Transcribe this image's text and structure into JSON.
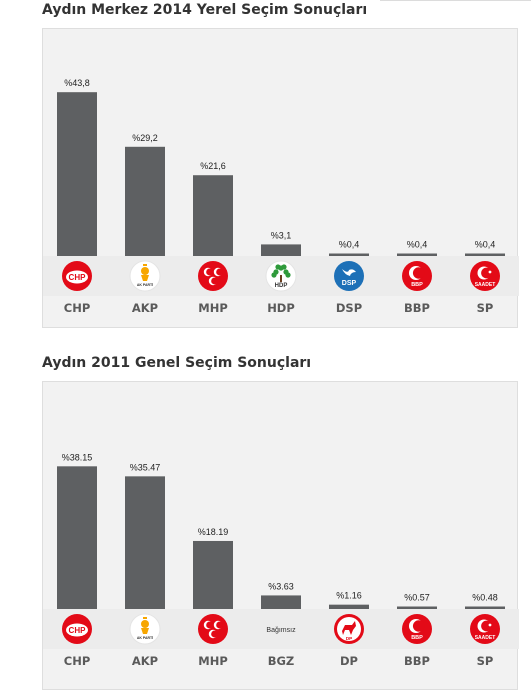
{
  "charts": [
    {
      "section_title": "Aydın Merkez 2014 Yerel Seçim Sonuçları",
      "chart_data": {
        "type": "bar",
        "title": "Aydın Merkez 2014 Yerel Seçim Sonuçları",
        "categories": [
          "CHP",
          "AKP",
          "MHP",
          "HDP",
          "DSP",
          "BBP",
          "SP"
        ],
        "values": [
          43.8,
          29.2,
          21.6,
          3.1,
          0.4,
          0.4,
          0.4
        ],
        "value_labels": [
          "%43,8",
          "%29,2",
          "%21,6",
          "%3,1",
          "%0,4",
          "%0,4",
          "%0,4"
        ],
        "logo_texts": [
          "CHP",
          "AK PARTİ",
          "",
          "HDP",
          "DSP",
          "BBP",
          "SAADET"
        ],
        "logo_icons": [
          "chp-logo-icon",
          "akp-logo-icon",
          "mhp-logo-icon",
          "hdp-logo-icon",
          "dsp-logo-icon",
          "bbp-logo-icon",
          "saadet-logo-icon"
        ],
        "ylim": [
          0,
          50
        ],
        "grid": false,
        "bar_color": "#5e6062"
      }
    },
    {
      "section_title": "Aydın 2011 Genel Seçim Sonuçları",
      "chart_data": {
        "type": "bar",
        "title": "Aydın 2011 Genel Seçim Sonuçları",
        "categories": [
          "CHP",
          "AKP",
          "MHP",
          "BGZ",
          "DP",
          "BBP",
          "SP"
        ],
        "values": [
          38.15,
          35.47,
          18.19,
          3.63,
          1.16,
          0.57,
          0.48
        ],
        "value_labels": [
          "%38.15",
          "%35.47",
          "%18.19",
          "%3.63",
          "%1.16",
          "%0.57",
          "%0.48"
        ],
        "logo_texts": [
          "CHP",
          "AK PARTİ",
          "",
          "Bağımsız",
          "DP",
          "BBP",
          "SAADET"
        ],
        "logo_icons": [
          "chp-logo-icon",
          "akp-logo-icon",
          "mhp-logo-icon",
          "bagimsiz-logo-icon",
          "dp-logo-icon",
          "bbp-logo-icon",
          "saadet-logo-icon"
        ],
        "ylim": [
          0,
          50
        ],
        "grid": false,
        "bar_color": "#5e6062"
      }
    }
  ],
  "colors": {
    "bar": "#5e6062",
    "panel": "#f2f2f2",
    "logo_red": "#e30a17",
    "dsp_blue": "#1d70b7"
  }
}
